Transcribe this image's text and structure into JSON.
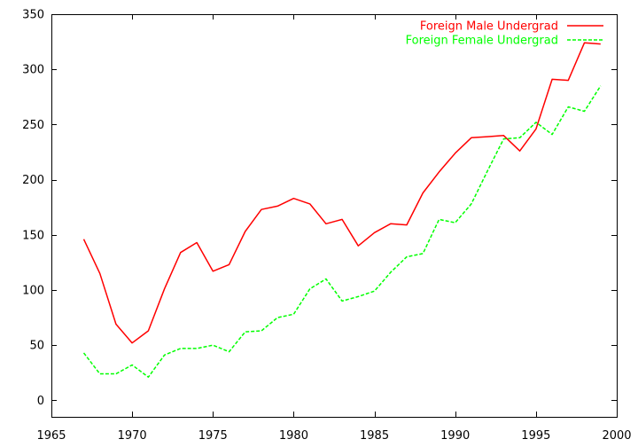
{
  "chart_data": {
    "type": "line",
    "title": "",
    "xlabel": "",
    "ylabel": "",
    "xlim": [
      1965,
      2000
    ],
    "ylim": [
      -15,
      350
    ],
    "grid": false,
    "legend_position": "top-right",
    "x_ticks": [
      1965,
      1970,
      1975,
      1980,
      1985,
      1990,
      1995,
      2000
    ],
    "y_ticks": [
      0,
      50,
      100,
      150,
      200,
      250,
      300,
      350
    ],
    "x": [
      1967,
      1968,
      1969,
      1970,
      1971,
      1972,
      1973,
      1974,
      1975,
      1976,
      1977,
      1978,
      1979,
      1980,
      1981,
      1982,
      1983,
      1984,
      1985,
      1986,
      1987,
      1988,
      1989,
      1990,
      1991,
      1992,
      1993,
      1994,
      1995,
      1996,
      1997,
      1998,
      1999
    ],
    "series": [
      {
        "name": "Foreign Male Undergrad",
        "color": "#ff0000",
        "dash": "solid",
        "values": [
          146,
          115,
          69,
          52,
          63,
          101,
          134,
          143,
          117,
          123,
          153,
          173,
          176,
          183,
          178,
          160,
          164,
          140,
          152,
          160,
          159,
          188,
          207,
          224,
          238,
          239,
          240,
          226,
          246,
          291,
          290,
          324,
          323
        ]
      },
      {
        "name": "Foreign Female Undergrad",
        "color": "#00ff00",
        "dash": "dashed",
        "values": [
          43,
          24,
          24,
          32,
          21,
          41,
          47,
          47,
          50,
          44,
          62,
          63,
          75,
          78,
          101,
          110,
          90,
          94,
          99,
          116,
          130,
          133,
          164,
          161,
          178,
          208,
          237,
          238,
          252,
          241,
          266,
          262,
          285
        ]
      }
    ]
  }
}
